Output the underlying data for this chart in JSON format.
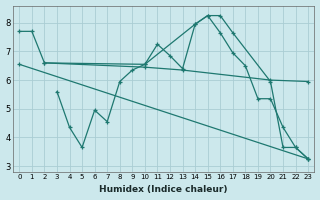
{
  "background_color": "#cce8ec",
  "grid_color": "#aacdd4",
  "line_color": "#1e7870",
  "xlabel": "Humidex (Indice chaleur)",
  "xlim": [
    -0.5,
    23.5
  ],
  "ylim": [
    2.8,
    8.6
  ],
  "yticks": [
    3,
    4,
    5,
    6,
    7,
    8
  ],
  "xticks": [
    0,
    1,
    2,
    3,
    4,
    5,
    6,
    7,
    8,
    9,
    10,
    11,
    12,
    13,
    14,
    15,
    16,
    17,
    18,
    19,
    20,
    21,
    22,
    23
  ],
  "series": [
    {
      "x": [
        0,
        1,
        2,
        10,
        14,
        15,
        16,
        17,
        20,
        21,
        22,
        23
      ],
      "y": [
        7.7,
        7.7,
        6.6,
        6.55,
        7.95,
        8.25,
        8.25,
        7.65,
        5.95,
        3.65,
        3.65,
        3.25
      ]
    },
    {
      "x": [
        2,
        10,
        13,
        20,
        23
      ],
      "y": [
        6.6,
        6.45,
        6.35,
        6.0,
        5.95
      ]
    },
    {
      "x": [
        0,
        23
      ],
      "y": [
        6.55,
        3.25
      ]
    },
    {
      "x": [
        3,
        4,
        5,
        6,
        7,
        8,
        9,
        10,
        11,
        12,
        13,
        14,
        15,
        16,
        17,
        18,
        19,
        20,
        21,
        22,
        23
      ],
      "y": [
        5.6,
        4.35,
        3.65,
        4.95,
        4.55,
        5.95,
        6.35,
        6.55,
        7.25,
        6.85,
        6.4,
        7.95,
        8.25,
        7.65,
        6.95,
        6.5,
        5.35,
        5.35,
        4.35,
        3.65,
        3.25
      ]
    }
  ]
}
